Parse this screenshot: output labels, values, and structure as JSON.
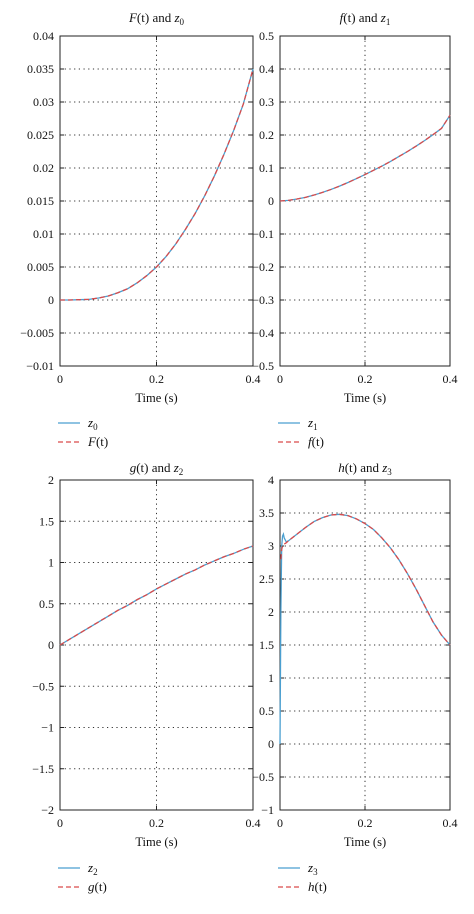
{
  "chart_data": [
    {
      "type": "line",
      "title": "F(t) and z0",
      "title_parts": {
        "a": "F",
        "b": "(t) and ",
        "c": "z",
        "sub": "0"
      },
      "xlabel": "Time (s)",
      "xlim": [
        0,
        0.4
      ],
      "ylim": [
        -0.01,
        0.04
      ],
      "xticks": [
        0,
        0.2,
        0.4
      ],
      "xtick_labels": [
        "0",
        "0.2",
        "0.4"
      ],
      "yticks": [
        -0.01,
        -0.005,
        0,
        0.005,
        0.01,
        0.015,
        0.02,
        0.025,
        0.03,
        0.035,
        0.04
      ],
      "ytick_labels": [
        "−0.01",
        "−0.005",
        "0",
        "0.005",
        "0.01",
        "0.015",
        "0.02",
        "0.025",
        "0.03",
        "0.035",
        "0.04"
      ],
      "grid": true,
      "legend_position": "below",
      "legend": [
        {
          "label_a": "z",
          "label_sub": "0",
          "label_b": "",
          "style": "solid",
          "color": "#4a9fd0"
        },
        {
          "label_a": "F",
          "label_sub": "",
          "label_b": "(t)",
          "style": "dashed",
          "color": "#d94b4b"
        }
      ],
      "series": [
        {
          "x": [
            0,
            0.02,
            0.04,
            0.06,
            0.08,
            0.1,
            0.12,
            0.14,
            0.16,
            0.18,
            0.2,
            0.22,
            0.24,
            0.26,
            0.28,
            0.3,
            0.32,
            0.34,
            0.36,
            0.38,
            0.4
          ],
          "y": [
            0,
            0,
            5e-05,
            0.0001,
            0.0003,
            0.0006,
            0.0011,
            0.0017,
            0.0026,
            0.0037,
            0.005,
            0.0066,
            0.0085,
            0.0107,
            0.0131,
            0.0158,
            0.0188,
            0.0221,
            0.0257,
            0.0297,
            0.035
          ],
          "color": "#4a9fd0",
          "style": "solid"
        },
        {
          "x": [
            0,
            0.02,
            0.04,
            0.06,
            0.08,
            0.1,
            0.12,
            0.14,
            0.16,
            0.18,
            0.2,
            0.22,
            0.24,
            0.26,
            0.28,
            0.3,
            0.32,
            0.34,
            0.36,
            0.38,
            0.4
          ],
          "y": [
            0,
            0,
            5e-05,
            0.0001,
            0.0003,
            0.0006,
            0.0011,
            0.0017,
            0.0026,
            0.0037,
            0.005,
            0.0066,
            0.0085,
            0.0107,
            0.0131,
            0.0158,
            0.0188,
            0.0221,
            0.0257,
            0.0297,
            0.035
          ],
          "color": "#d94b4b",
          "style": "dashed"
        }
      ]
    },
    {
      "type": "line",
      "title": "f(t) and z1",
      "title_parts": {
        "a": "f",
        "b": "(t) and ",
        "c": "z",
        "sub": "1"
      },
      "xlabel": "Time (s)",
      "xlim": [
        0,
        0.4
      ],
      "ylim": [
        -0.5,
        0.5
      ],
      "xticks": [
        0,
        0.2,
        0.4
      ],
      "xtick_labels": [
        "0",
        "0.2",
        "0.4"
      ],
      "yticks": [
        -0.5,
        -0.4,
        -0.3,
        -0.2,
        -0.1,
        0,
        0.1,
        0.2,
        0.3,
        0.4,
        0.5
      ],
      "ytick_labels": [
        "−0.5",
        "−0.4",
        "−0.3",
        "−0.2",
        "−0.1",
        "0",
        "0.1",
        "0.2",
        "0.3",
        "0.4",
        "0.5"
      ],
      "grid": true,
      "legend_position": "below",
      "legend": [
        {
          "label_a": "z",
          "label_sub": "1",
          "label_b": "",
          "style": "solid",
          "color": "#4a9fd0"
        },
        {
          "label_a": "f",
          "label_sub": "",
          "label_b": "(t)",
          "style": "dashed",
          "color": "#d94b4b"
        }
      ],
      "series": [
        {
          "x": [
            0,
            0.02,
            0.04,
            0.06,
            0.08,
            0.1,
            0.12,
            0.14,
            0.16,
            0.18,
            0.2,
            0.22,
            0.24,
            0.26,
            0.28,
            0.3,
            0.32,
            0.34,
            0.36,
            0.38,
            0.4
          ],
          "y": [
            0,
            0.002,
            0.006,
            0.011,
            0.018,
            0.026,
            0.035,
            0.045,
            0.056,
            0.068,
            0.08,
            0.093,
            0.106,
            0.12,
            0.135,
            0.15,
            0.166,
            0.183,
            0.201,
            0.22,
            0.26
          ],
          "color": "#4a9fd0",
          "style": "solid"
        },
        {
          "x": [
            0,
            0.02,
            0.04,
            0.06,
            0.08,
            0.1,
            0.12,
            0.14,
            0.16,
            0.18,
            0.2,
            0.22,
            0.24,
            0.26,
            0.28,
            0.3,
            0.32,
            0.34,
            0.36,
            0.38,
            0.4
          ],
          "y": [
            0,
            0.002,
            0.006,
            0.011,
            0.018,
            0.026,
            0.035,
            0.045,
            0.056,
            0.068,
            0.08,
            0.093,
            0.106,
            0.12,
            0.135,
            0.15,
            0.166,
            0.183,
            0.201,
            0.22,
            0.26
          ],
          "color": "#d94b4b",
          "style": "dashed"
        }
      ]
    },
    {
      "type": "line",
      "title": "g(t) and z2",
      "title_parts": {
        "a": "g",
        "b": "(t) and ",
        "c": "z",
        "sub": "2"
      },
      "xlabel": "Time (s)",
      "xlim": [
        0,
        0.4
      ],
      "ylim": [
        -2,
        2
      ],
      "xticks": [
        0,
        0.2,
        0.4
      ],
      "xtick_labels": [
        "0",
        "0.2",
        "0.4"
      ],
      "yticks": [
        -2,
        -1.5,
        -1,
        -0.5,
        0,
        0.5,
        1,
        1.5,
        2
      ],
      "ytick_labels": [
        "−2",
        "−1.5",
        "−1",
        "−0.5",
        "0",
        "0.5",
        "1",
        "1.5",
        "2"
      ],
      "grid": true,
      "legend_position": "below",
      "legend": [
        {
          "label_a": "z",
          "label_sub": "2",
          "label_b": "",
          "style": "solid",
          "color": "#4a9fd0"
        },
        {
          "label_a": "g",
          "label_sub": "",
          "label_b": "(t)",
          "style": "dashed",
          "color": "#d94b4b"
        }
      ],
      "series": [
        {
          "x": [
            0,
            0.02,
            0.04,
            0.06,
            0.08,
            0.1,
            0.12,
            0.14,
            0.16,
            0.18,
            0.2,
            0.22,
            0.24,
            0.26,
            0.28,
            0.3,
            0.32,
            0.34,
            0.36,
            0.38,
            0.4
          ],
          "y": [
            0,
            0.07,
            0.14,
            0.21,
            0.28,
            0.35,
            0.42,
            0.48,
            0.55,
            0.61,
            0.68,
            0.74,
            0.8,
            0.86,
            0.91,
            0.97,
            1.02,
            1.07,
            1.11,
            1.16,
            1.2
          ],
          "color": "#4a9fd0",
          "style": "solid"
        },
        {
          "x": [
            0,
            0.02,
            0.04,
            0.06,
            0.08,
            0.1,
            0.12,
            0.14,
            0.16,
            0.18,
            0.2,
            0.22,
            0.24,
            0.26,
            0.28,
            0.3,
            0.32,
            0.34,
            0.36,
            0.38,
            0.4
          ],
          "y": [
            0,
            0.07,
            0.14,
            0.21,
            0.28,
            0.35,
            0.42,
            0.48,
            0.55,
            0.61,
            0.68,
            0.74,
            0.8,
            0.86,
            0.91,
            0.97,
            1.02,
            1.07,
            1.11,
            1.16,
            1.2
          ],
          "color": "#d94b4b",
          "style": "dashed"
        }
      ]
    },
    {
      "type": "line",
      "title": "h(t) and z3",
      "title_parts": {
        "a": "h",
        "b": "(t) and ",
        "c": "z",
        "sub": "3"
      },
      "xlabel": "Time (s)",
      "xlim": [
        0,
        0.4
      ],
      "ylim": [
        -1,
        4
      ],
      "xticks": [
        0,
        0.2,
        0.4
      ],
      "xtick_labels": [
        "0",
        "0.2",
        "0.4"
      ],
      "yticks": [
        -1,
        -0.5,
        0,
        0.5,
        1,
        1.5,
        2,
        2.5,
        3,
        3.5,
        4
      ],
      "ytick_labels": [
        "−1",
        "−0.5",
        "0",
        "0.5",
        "1",
        "1.5",
        "2",
        "2.5",
        "3",
        "3.5",
        "4"
      ],
      "grid": true,
      "legend_position": "below",
      "legend": [
        {
          "label_a": "z",
          "label_sub": "3",
          "label_b": "",
          "style": "solid",
          "color": "#4a9fd0"
        },
        {
          "label_a": "h",
          "label_sub": "",
          "label_b": "(t)",
          "style": "dashed",
          "color": "#d94b4b"
        }
      ],
      "series": [
        {
          "x": [
            0,
            0.002,
            0.004,
            0.006,
            0.008,
            0.01,
            0.015,
            0.02,
            0.04,
            0.06,
            0.08,
            0.1,
            0.12,
            0.14,
            0.16,
            0.18,
            0.2,
            0.22,
            0.24,
            0.26,
            0.28,
            0.3,
            0.32,
            0.34,
            0.36,
            0.38,
            0.4
          ],
          "y": [
            0,
            2.0,
            3.0,
            3.15,
            3.18,
            3.12,
            3.06,
            3.08,
            3.18,
            3.28,
            3.37,
            3.43,
            3.47,
            3.48,
            3.46,
            3.41,
            3.34,
            3.25,
            3.12,
            2.97,
            2.79,
            2.58,
            2.35,
            2.1,
            1.85,
            1.65,
            1.5
          ],
          "color": "#4a9fd0",
          "style": "solid"
        },
        {
          "x": [
            0.002,
            0.004,
            0.006,
            0.008,
            0.01,
            0.015,
            0.02,
            0.04,
            0.06,
            0.08,
            0.1,
            0.12,
            0.14,
            0.16,
            0.18,
            0.2,
            0.22,
            0.24,
            0.26,
            0.28,
            0.3,
            0.32,
            0.34,
            0.36,
            0.38,
            0.4
          ],
          "y": [
            2.8,
            2.95,
            3.0,
            3.02,
            3.03,
            3.05,
            3.08,
            3.18,
            3.28,
            3.37,
            3.43,
            3.47,
            3.48,
            3.46,
            3.41,
            3.34,
            3.25,
            3.12,
            2.97,
            2.79,
            2.58,
            2.35,
            2.1,
            1.85,
            1.65,
            1.5
          ],
          "color": "#d94b4b",
          "style": "dashed"
        }
      ]
    }
  ]
}
